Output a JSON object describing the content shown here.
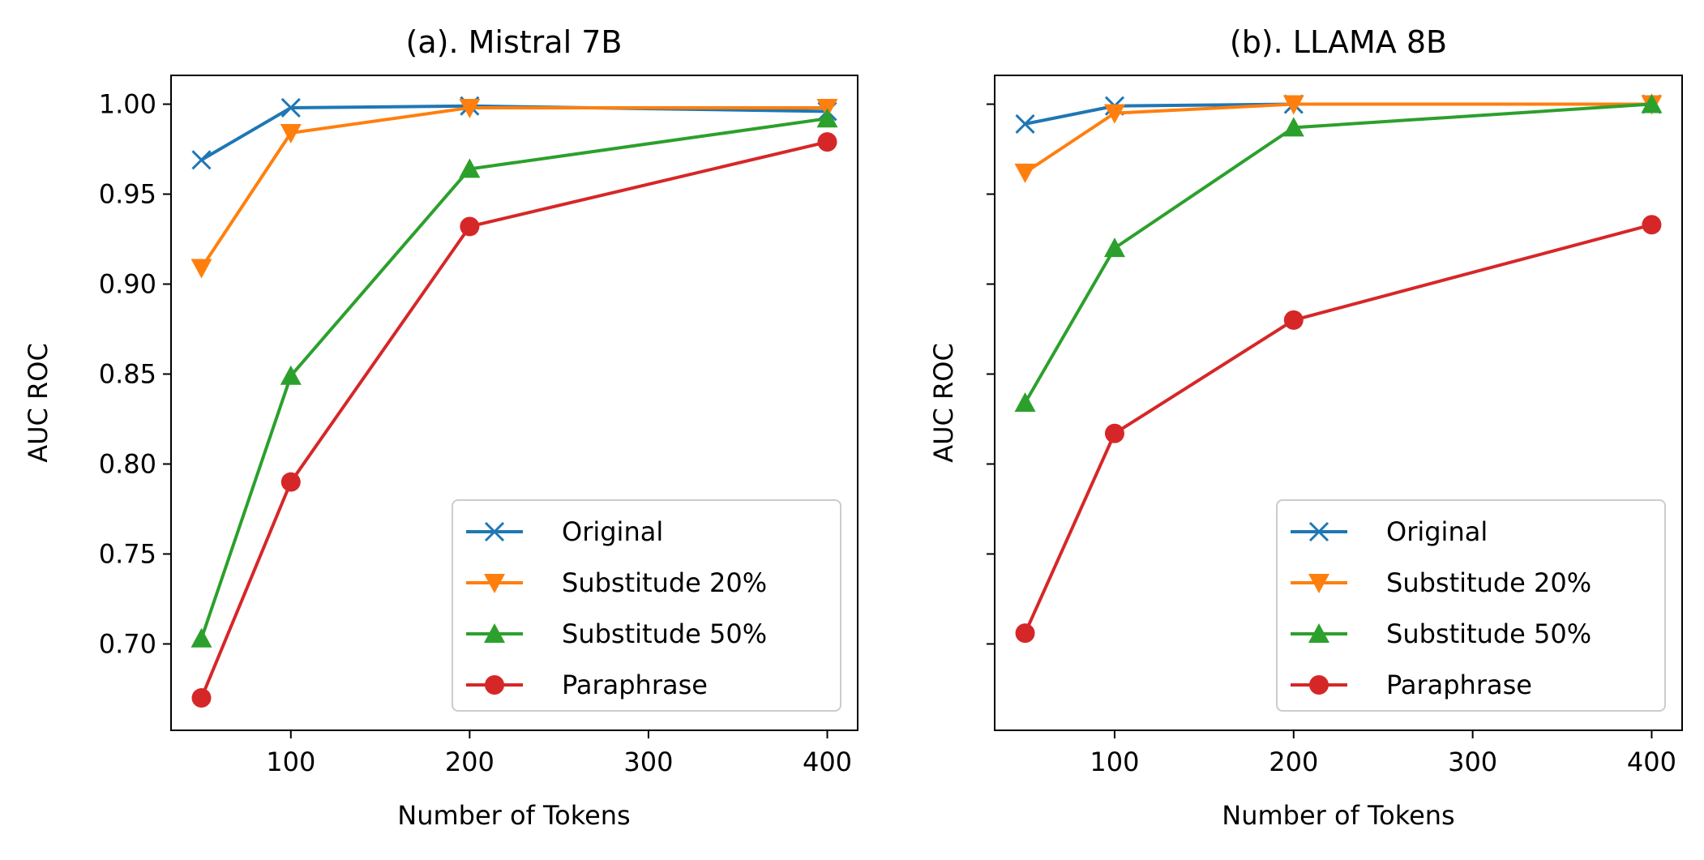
{
  "figure": {
    "panels": [
      {
        "title": "(a). Mistral 7B",
        "xlabel": "Number of Tokens",
        "ylabel": "AUC ROC",
        "xticks": [
          "100",
          "200",
          "300",
          "400"
        ],
        "yticks": [
          "0.70",
          "0.75",
          "0.80",
          "0.85",
          "0.90",
          "0.95",
          "1.00"
        ]
      },
      {
        "title": "(b). LLAMA 8B",
        "xlabel": "Number of Tokens",
        "ylabel": "AUC ROC",
        "xticks": [
          "100",
          "200",
          "300",
          "400"
        ],
        "yticks": []
      }
    ],
    "legend": [
      "Original",
      "Substitude 20%",
      "Substitude 50%",
      "Paraphrase"
    ]
  },
  "chart_data": [
    {
      "type": "line",
      "title": "(a). Mistral 7B",
      "xlabel": "Number of Tokens",
      "ylabel": "AUC ROC",
      "x": [
        50,
        100,
        200,
        400
      ],
      "xlim": [
        33,
        417
      ],
      "ylim": [
        0.652,
        1.016
      ],
      "xticks": [
        100,
        200,
        300,
        400
      ],
      "yticks": [
        0.7,
        0.75,
        0.8,
        0.85,
        0.9,
        0.95,
        1.0
      ],
      "grid": false,
      "legend_position": "lower right",
      "series": [
        {
          "name": "Original",
          "color": "#1f77b4",
          "marker": "x",
          "values": [
            0.969,
            0.998,
            0.999,
            0.996
          ]
        },
        {
          "name": "Substitude 20%",
          "color": "#ff7f0e",
          "marker": "triangle-down",
          "values": [
            0.909,
            0.984,
            0.998,
            0.998
          ]
        },
        {
          "name": "Substitude 50%",
          "color": "#2ca02c",
          "marker": "triangle-up",
          "values": [
            0.703,
            0.849,
            0.964,
            0.992
          ]
        },
        {
          "name": "Paraphrase",
          "color": "#d62728",
          "marker": "circle",
          "values": [
            0.67,
            0.79,
            0.932,
            0.979
          ]
        }
      ]
    },
    {
      "type": "line",
      "title": "(b). LLAMA 8B",
      "xlabel": "Number of Tokens",
      "ylabel": "AUC ROC",
      "x": [
        50,
        100,
        200,
        400
      ],
      "xlim": [
        33,
        417
      ],
      "ylim": [
        0.652,
        1.016
      ],
      "xticks": [
        100,
        200,
        300,
        400
      ],
      "yticks": [
        0.7,
        0.75,
        0.8,
        0.85,
        0.9,
        0.95,
        1.0
      ],
      "ytick_labels_shown": false,
      "grid": false,
      "legend_position": "lower right",
      "series": [
        {
          "name": "Original",
          "color": "#1f77b4",
          "marker": "x",
          "values": [
            0.989,
            0.999,
            1.0,
            1.0
          ]
        },
        {
          "name": "Substitude 20%",
          "color": "#ff7f0e",
          "marker": "triangle-down",
          "values": [
            0.962,
            0.995,
            1.0,
            1.0
          ]
        },
        {
          "name": "Substitude 50%",
          "color": "#2ca02c",
          "marker": "triangle-up",
          "values": [
            0.834,
            0.92,
            0.987,
            1.0
          ]
        },
        {
          "name": "Paraphrase",
          "color": "#d62728",
          "marker": "circle",
          "values": [
            0.706,
            0.817,
            0.88,
            0.933
          ]
        }
      ]
    }
  ]
}
